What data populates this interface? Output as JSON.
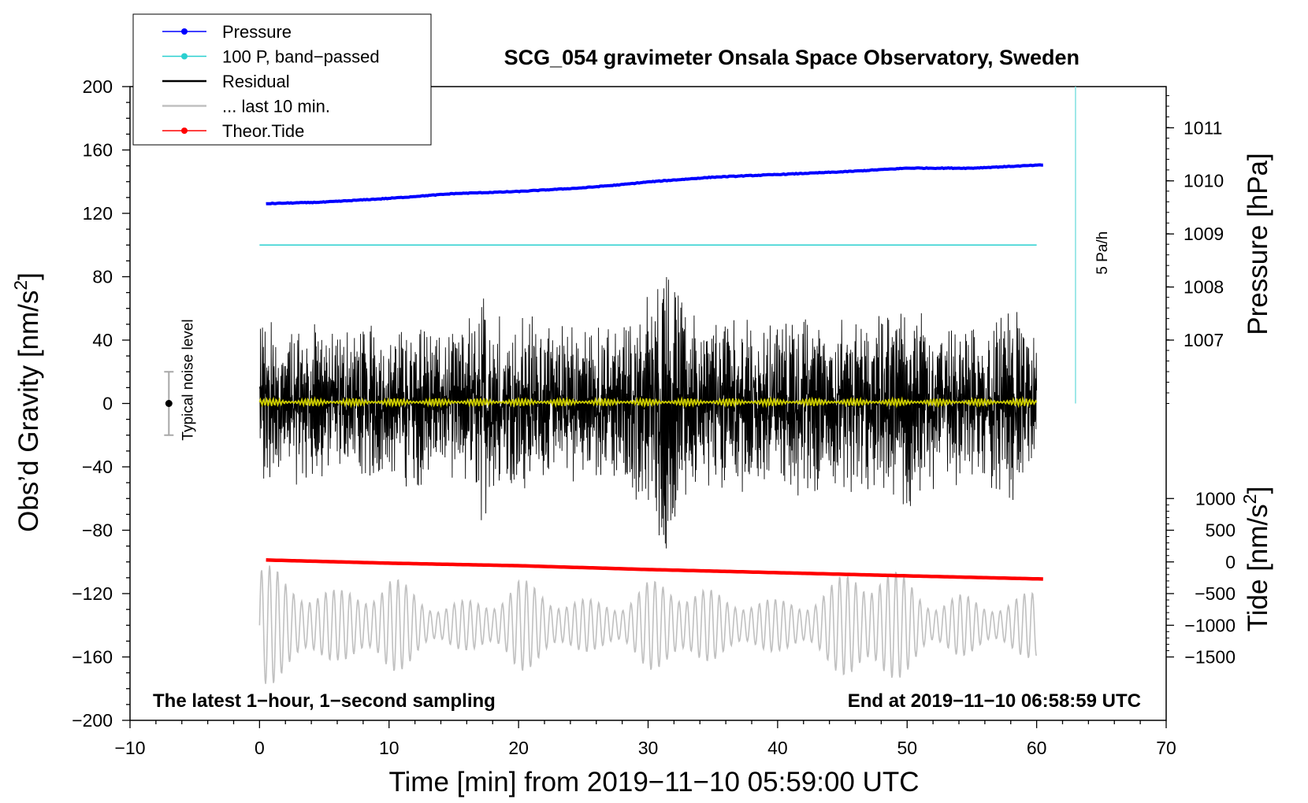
{
  "chart_data": {
    "type": "line",
    "title": "SCG_054 gravimeter Onsala Space Observatory, Sweden",
    "xlabel": "Time [min] from 2019−11−10 05:59:00 UTC",
    "xlim": [
      -10,
      70
    ],
    "xticks": [
      "−10",
      "0",
      "10",
      "20",
      "30",
      "40",
      "50",
      "60",
      "70"
    ],
    "y_left": {
      "label_text": "Obs’d Gravity [nm/s",
      "label_sup": "2",
      "label_end": "]",
      "lim": [
        -200,
        200
      ],
      "ticks": [
        "200",
        "160",
        "120",
        "80",
        "40",
        "0",
        "−40",
        "−80",
        "−120",
        "−160",
        "−200"
      ]
    },
    "y_pressure": {
      "label": "Pressure [hPa]",
      "units": "hPa",
      "tick_values": [
        1011,
        1010,
        1009,
        1008,
        1007
      ],
      "ticks": [
        "1011",
        "1010",
        "1009",
        "1008",
        "1007"
      ],
      "gravity_at_1007": 40,
      "gravity_per_hPa": 33.5
    },
    "y_tide": {
      "label_text": "Tide [nm/s",
      "label_sup": "2",
      "label_end": "]",
      "tick_values": [
        1000,
        500,
        0,
        -500,
        -1000,
        -1500
      ],
      "ticks": [
        "1000",
        "500",
        "0",
        "−500",
        "−1000",
        "−1500"
      ],
      "gravity_at_zero": -100,
      "gravity_per_unit": 0.04
    },
    "legend": {
      "placement": "top-left",
      "entries": [
        {
          "label": "Pressure",
          "color": "#0000ff",
          "marker": true
        },
        {
          "label": "100 P, band−passed",
          "color": "#2ad0d0",
          "marker": true
        },
        {
          "label": "Residual",
          "color": "#000000",
          "marker": false
        },
        {
          "label": "... last 10 min.",
          "color": "#c0c0c0",
          "marker": false
        },
        {
          "label": "Theor.Tide",
          "color": "#ff0000",
          "marker": true
        }
      ]
    },
    "noise_bar": {
      "label": "Typical noise level",
      "x": -7,
      "center": 0,
      "half_range": 20
    },
    "pressure_rate": {
      "label": "5 Pa/h",
      "x": 63,
      "y_start": 0,
      "y_end": 200,
      "color": "#80e0e0"
    },
    "series": [
      {
        "name": "Pressure",
        "color": "#0000ff",
        "unit": "hPa",
        "x": [
          0.5,
          5,
          10,
          15,
          20,
          25,
          28,
          30,
          35,
          40,
          45,
          50,
          55,
          60.5
        ],
        "values": [
          1009.57,
          1009.6,
          1009.67,
          1009.76,
          1009.8,
          1009.87,
          1009.93,
          1009.98,
          1010.07,
          1010.12,
          1010.17,
          1010.24,
          1010.24,
          1010.3
        ]
      },
      {
        "name": "100 P, band-passed",
        "color": "#2ad0d0",
        "unit": "nm/s2",
        "x": [
          0,
          60
        ],
        "values": [
          100,
          100
        ]
      },
      {
        "name": "Residual",
        "color": "#000000",
        "unit": "nm/s2",
        "x_range": [
          0,
          60
        ],
        "samples": 3600,
        "envelope_x": [
          0,
          2,
          4,
          6,
          8,
          10,
          12,
          14,
          16,
          17.5,
          19,
          21,
          23,
          25,
          27,
          29,
          30.5,
          31.5,
          32.5,
          34,
          36,
          38,
          40,
          42,
          44,
          46,
          48,
          50,
          51,
          53,
          55,
          57,
          58,
          60
        ],
        "envelope": [
          55,
          45,
          50,
          45,
          48,
          42,
          55,
          40,
          50,
          75,
          45,
          55,
          45,
          50,
          45,
          55,
          75,
          90,
          65,
          45,
          55,
          50,
          45,
          55,
          50,
          55,
          50,
          70,
          55,
          45,
          50,
          55,
          60,
          35
        ]
      },
      {
        "name": "Residual (band-passed)",
        "color": "#cccc00",
        "unit": "nm/s2",
        "x_range": [
          0,
          60
        ],
        "amplitude": 2.5
      },
      {
        "name": "... last 10 min.",
        "color": "#c0c0c0",
        "unit": "nm/s2",
        "x_range": [
          0,
          60
        ],
        "center": -140,
        "envelope_x": [
          0,
          2,
          4,
          6,
          8,
          10,
          12,
          14,
          16,
          18,
          20,
          22,
          24,
          26,
          28,
          30,
          32,
          34,
          36,
          38,
          40,
          42,
          44,
          46,
          48,
          50,
          52,
          54,
          56,
          58,
          60
        ],
        "envelope": [
          45,
          30,
          28,
          22,
          26,
          32,
          24,
          14,
          16,
          20,
          30,
          24,
          18,
          16,
          18,
          28,
          30,
          26,
          18,
          20,
          16,
          18,
          26,
          38,
          42,
          30,
          18,
          20,
          16,
          18,
          22
        ]
      },
      {
        "name": "Theor.Tide",
        "color": "#ff0000",
        "unit": "nm/s2",
        "x": [
          0.5,
          10,
          20,
          30,
          40,
          50,
          60.5
        ],
        "values": [
          30,
          -20,
          -60,
          -120,
          -170,
          -220,
          -270
        ]
      }
    ],
    "annotations": {
      "bottom_left": "The latest 1−hour, 1−second sampling",
      "bottom_right": "End at 2019−11−10 06:58:59 UTC"
    }
  }
}
